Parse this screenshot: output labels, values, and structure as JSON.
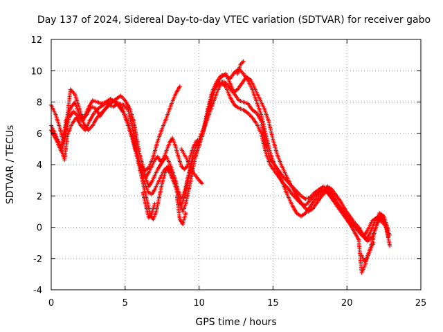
{
  "chart_data": {
    "type": "scatter",
    "title": "Day 137 of 2024, Sidereal Day-to-day VTEC variation (SDTVAR) for receiver gabo",
    "xlabel": "GPS time / hours",
    "ylabel": "SDTVAR / TECUs",
    "xlim": [
      0,
      25
    ],
    "ylim": [
      -4,
      12
    ],
    "xticks": [
      "0",
      "5",
      "10",
      "15",
      "20",
      "25"
    ],
    "yticks": [
      "-4",
      "-2",
      "0",
      "2",
      "4",
      "6",
      "8",
      "10",
      "12"
    ],
    "grid": true,
    "legend": "none",
    "marker": "plus",
    "color": "#ff0000",
    "series": [
      {
        "x": [
          0.0,
          0.3,
          0.6,
          0.8,
          1.0,
          1.3,
          1.6,
          1.9,
          2.2,
          2.5,
          2.8,
          3.1,
          3.4,
          3.7,
          4.0,
          4.3,
          4.6,
          4.9,
          5.2,
          5.5,
          5.8,
          6.0,
          6.2,
          6.4,
          6.6,
          6.8,
          7.0,
          7.2,
          7.4,
          7.6,
          7.8,
          8.0,
          8.2,
          8.4,
          8.6,
          8.8,
          9.0,
          9.2,
          9.4,
          9.6,
          9.8,
          10.0,
          10.3,
          10.6,
          10.9,
          11.2,
          11.5,
          11.8,
          12.1,
          12.4,
          12.7,
          13.0,
          13.3,
          13.6,
          13.9,
          14.2,
          14.5,
          14.8,
          15.1,
          15.4,
          15.7,
          16.0,
          16.3,
          16.6,
          16.9,
          17.2,
          17.5,
          17.8,
          18.1,
          18.4,
          18.7,
          19.0,
          19.3,
          19.6,
          19.9,
          20.2,
          20.5,
          20.8,
          21.1,
          21.4,
          21.7,
          22.0,
          22.3,
          22.6,
          22.9
        ],
        "y": [
          7.8,
          7.2,
          6.3,
          5.5,
          6.8,
          7.6,
          8.0,
          7.2,
          7.0,
          7.6,
          8.1,
          8.0,
          7.9,
          8.0,
          8.2,
          8.0,
          7.9,
          7.8,
          7.5,
          6.3,
          4.9,
          4.0,
          3.4,
          3.2,
          3.5,
          3.9,
          4.3,
          4.5,
          4.2,
          4.4,
          4.9,
          5.4,
          5.7,
          5.2,
          4.5,
          3.9,
          3.7,
          3.9,
          4.5,
          5.1,
          5.5,
          5.6,
          6.3,
          7.4,
          8.5,
          9.3,
          9.6,
          9.8,
          9.2,
          8.5,
          8.1,
          8.0,
          7.9,
          7.5,
          7.3,
          6.8,
          5.3,
          4.4,
          4.0,
          3.6,
          3.2,
          2.9,
          2.6,
          2.3,
          2.0,
          1.8,
          1.9,
          2.2,
          2.4,
          2.6,
          2.5,
          2.1,
          1.6,
          1.2,
          0.8,
          0.4,
          0.1,
          -0.3,
          -0.6,
          -0.2,
          0.4,
          0.6,
          0.4,
          0.1,
          -0.5
        ]
      },
      {
        "x": [
          0.0,
          0.3,
          0.6,
          0.9,
          1.1,
          1.4,
          1.7,
          2.0,
          2.3,
          2.6,
          2.9,
          3.2,
          3.5,
          3.8,
          4.1,
          4.4,
          4.7,
          5.0,
          5.3,
          5.6,
          5.8,
          6.0,
          6.2,
          6.4,
          6.6,
          6.8,
          7.0,
          7.2,
          7.4,
          7.6,
          7.8,
          8.0,
          8.2,
          8.4,
          8.6,
          8.8,
          9.0,
          9.2,
          9.4,
          9.6,
          9.8,
          10.0,
          10.3,
          10.6,
          10.9,
          11.2,
          11.5,
          11.8,
          12.1,
          12.4,
          12.7,
          13.0,
          13.3,
          13.6,
          13.9,
          14.2,
          14.5,
          14.8,
          15.1,
          15.4,
          15.7,
          16.0,
          16.3,
          16.6,
          16.9,
          17.2,
          17.5,
          17.8,
          18.1,
          18.4,
          18.7,
          19.0,
          19.3,
          19.6,
          19.9,
          20.2,
          20.5,
          20.8,
          21.0,
          21.2,
          21.4,
          21.6,
          21.8,
          22.0,
          22.2,
          22.5,
          22.8
        ],
        "y": [
          6.5,
          5.9,
          5.3,
          4.3,
          5.9,
          6.6,
          7.0,
          6.5,
          6.2,
          6.8,
          7.3,
          7.6,
          7.8,
          7.9,
          8.0,
          8.2,
          8.4,
          8.1,
          7.6,
          6.7,
          5.6,
          4.6,
          3.9,
          3.1,
          2.6,
          2.9,
          3.3,
          3.7,
          4.0,
          4.3,
          4.5,
          4.1,
          3.6,
          3.0,
          2.3,
          1.8,
          2.2,
          3.0,
          3.8,
          4.7,
          5.2,
          5.5,
          6.2,
          7.0,
          7.8,
          8.6,
          9.2,
          9.0,
          8.3,
          7.8,
          7.6,
          7.5,
          7.3,
          7.0,
          6.6,
          6.0,
          4.8,
          4.0,
          3.6,
          3.2,
          2.8,
          2.5,
          2.1,
          1.8,
          1.5,
          1.4,
          1.7,
          2.0,
          2.2,
          2.4,
          2.2,
          1.8,
          1.4,
          1.0,
          0.6,
          0.2,
          -0.3,
          -0.8,
          -2.9,
          -2.5,
          -1.8,
          -1.3,
          -0.6,
          0.2,
          0.9,
          0.7,
          -0.2
        ]
      },
      {
        "x": [
          0.1,
          0.4,
          0.7,
          1.0,
          1.3,
          1.6,
          1.9,
          2.2,
          2.5,
          2.8,
          3.1,
          3.4,
          3.7,
          4.0,
          4.3,
          4.6,
          4.9,
          5.2,
          5.5,
          5.8,
          6.1,
          6.3,
          6.5,
          6.7,
          6.9,
          7.1,
          7.3,
          7.5,
          7.7,
          7.9,
          8.1,
          8.3,
          8.5,
          8.7,
          8.9,
          9.1,
          9.4,
          9.7,
          10.0,
          10.3,
          10.6,
          10.9,
          11.2,
          11.5,
          11.8,
          12.1,
          12.4,
          12.7,
          13.0,
          13.3,
          13.6,
          13.9,
          14.2,
          14.5,
          14.8,
          15.1,
          15.4,
          15.7,
          16.0,
          16.3,
          16.6,
          16.9,
          17.2,
          17.5,
          17.8,
          18.1,
          18.4,
          18.7,
          19.0,
          19.3,
          19.6,
          19.9,
          20.2,
          20.5,
          20.8,
          21.1,
          21.4,
          21.7,
          22.0,
          22.3,
          22.6,
          22.9
        ],
        "y": [
          6.0,
          5.5,
          4.8,
          6.3,
          8.8,
          8.5,
          7.6,
          6.6,
          6.2,
          6.5,
          7.0,
          7.3,
          7.6,
          7.9,
          8.1,
          7.7,
          7.3,
          6.5,
          5.6,
          4.5,
          3.3,
          2.4,
          1.6,
          0.8,
          0.5,
          1.0,
          1.9,
          2.8,
          3.5,
          3.9,
          3.6,
          3.0,
          2.4,
          1.6,
          1.0,
          1.5,
          2.8,
          4.3,
          5.2,
          6.2,
          7.6,
          8.7,
          9.3,
          9.7,
          9.7,
          9.5,
          9.9,
          10.1,
          9.8,
          9.4,
          8.8,
          8.0,
          7.2,
          6.0,
          4.8,
          4.0,
          3.4,
          2.7,
          2.0,
          1.4,
          0.9,
          0.7,
          0.9,
          1.3,
          1.7,
          2.0,
          2.3,
          2.6,
          2.4,
          2.0,
          1.6,
          1.1,
          0.7,
          0.3,
          0.0,
          -0.5,
          -0.9,
          -0.6,
          0.1,
          0.7,
          0.3,
          -1.2
        ]
      },
      {
        "x": [
          0.0,
          0.3,
          0.6,
          0.9,
          1.2,
          1.5,
          1.8,
          2.1,
          2.4,
          2.7,
          3.0,
          3.3,
          3.6,
          3.9,
          4.2,
          4.5,
          4.8,
          5.1,
          5.4,
          5.7,
          6.0,
          6.2,
          6.4,
          6.6,
          6.8,
          7.0,
          7.2,
          7.4,
          7.6,
          7.8,
          8.0,
          8.2,
          8.4,
          8.6,
          8.8,
          9.0,
          9.3,
          9.6,
          9.9,
          10.2,
          10.5,
          10.8,
          11.1,
          11.4,
          11.7,
          12.0,
          12.3,
          12.6,
          12.9,
          13.2,
          13.5,
          13.8,
          14.1,
          14.4,
          14.7,
          15.0,
          15.3,
          15.6,
          15.9,
          16.2,
          16.5,
          16.8,
          17.1,
          17.4,
          17.7,
          18.0,
          18.3,
          18.6,
          18.9,
          19.2,
          19.5,
          19.8,
          20.1,
          20.4,
          20.7,
          21.0,
          21.3,
          21.6,
          21.9,
          22.2,
          22.5,
          22.8
        ],
        "y": [
          6.2,
          5.7,
          5.0,
          5.8,
          7.0,
          7.4,
          7.1,
          6.8,
          7.2,
          7.7,
          7.6,
          7.1,
          7.5,
          7.8,
          7.7,
          7.9,
          7.6,
          6.9,
          6.1,
          5.0,
          4.0,
          3.2,
          2.6,
          2.2,
          2.1,
          2.4,
          2.8,
          3.2,
          3.6,
          3.8,
          3.5,
          3.1,
          2.6,
          2.0,
          1.4,
          1.9,
          3.2,
          4.4,
          5.0,
          5.8,
          6.9,
          8.0,
          8.9,
          9.3,
          9.3,
          9.0,
          8.6,
          8.8,
          9.2,
          9.6,
          9.4,
          8.8,
          8.2,
          7.6,
          6.8,
          5.6,
          4.6,
          3.9,
          3.3,
          2.7,
          2.2,
          1.7,
          1.3,
          1.0,
          1.2,
          1.6,
          2.0,
          2.3,
          2.1,
          1.7,
          1.3,
          0.9,
          0.5,
          0.2,
          -0.1,
          -0.4,
          -0.8,
          -0.3,
          0.4,
          0.8,
          0.5,
          -0.6
        ]
      },
      {
        "x": [
          6.0,
          6.3,
          6.6,
          6.9,
          7.2,
          7.5,
          7.8,
          8.1,
          8.4,
          8.7
        ],
        "y": [
          4.0,
          3.6,
          3.8,
          4.5,
          5.5,
          6.3,
          7.0,
          7.8,
          8.5,
          9.0
        ]
      },
      {
        "x": [
          8.8,
          9.2,
          9.6,
          10.0,
          10.2
        ],
        "y": [
          5.0,
          4.3,
          3.5,
          3.0,
          2.8
        ]
      },
      {
        "x": [
          6.2,
          6.4,
          6.6,
          6.8,
          7.0
        ],
        "y": [
          2.2,
          1.4,
          0.6,
          0.9,
          1.5
        ]
      },
      {
        "x": [
          8.5,
          8.7,
          8.9,
          9.1
        ],
        "y": [
          2.0,
          0.5,
          0.2,
          0.9
        ]
      },
      {
        "x": [
          12.6,
          12.8,
          13.0
        ],
        "y": [
          9.8,
          10.4,
          10.6
        ]
      },
      {
        "x": [
          21.0,
          21.2,
          21.4,
          21.6,
          21.8
        ],
        "y": [
          -1.8,
          -2.2,
          -1.9,
          -1.4,
          -1.0
        ]
      }
    ]
  }
}
